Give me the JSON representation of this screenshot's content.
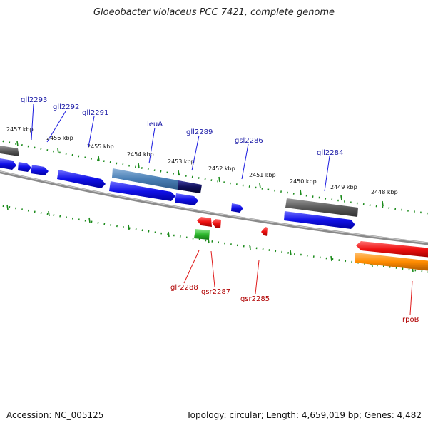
{
  "title": "Gloeobacter violaceus PCC 7421, complete genome",
  "footer": {
    "accession": "Accession: NC_005125",
    "topology": "Topology: circular; Length: 4,659,019 bp; Genes: 4,482"
  },
  "colors": {
    "forward_gene": "#1a1aee",
    "reverse_gene": "#ee1a1a",
    "trna": "#2eb82e",
    "rrna": "#ff8c00",
    "operon": "#4a7fb5",
    "pseudo": "#606060",
    "tick": "#1a8a1a",
    "backbone": "#808080",
    "label_top": "#1a1aa6",
    "label_bottom": "#b00000"
  },
  "kbp_labels": [
    "2457 kbp",
    "2456 kbp",
    "2455 kbp",
    "2454 kbp",
    "2453 kbp",
    "2452 kbp",
    "2451 kbp",
    "2450 kbp",
    "2449 kbp",
    "2448 kbp"
  ],
  "top_gene_labels": [
    "gll2293",
    "gll2292",
    "gll2291",
    "leuA",
    "gll2289",
    "gsl2286",
    "gll2284"
  ],
  "bottom_gene_labels": [
    "glr2288",
    "gsr2287",
    "gsr2285",
    "rpoB"
  ]
}
